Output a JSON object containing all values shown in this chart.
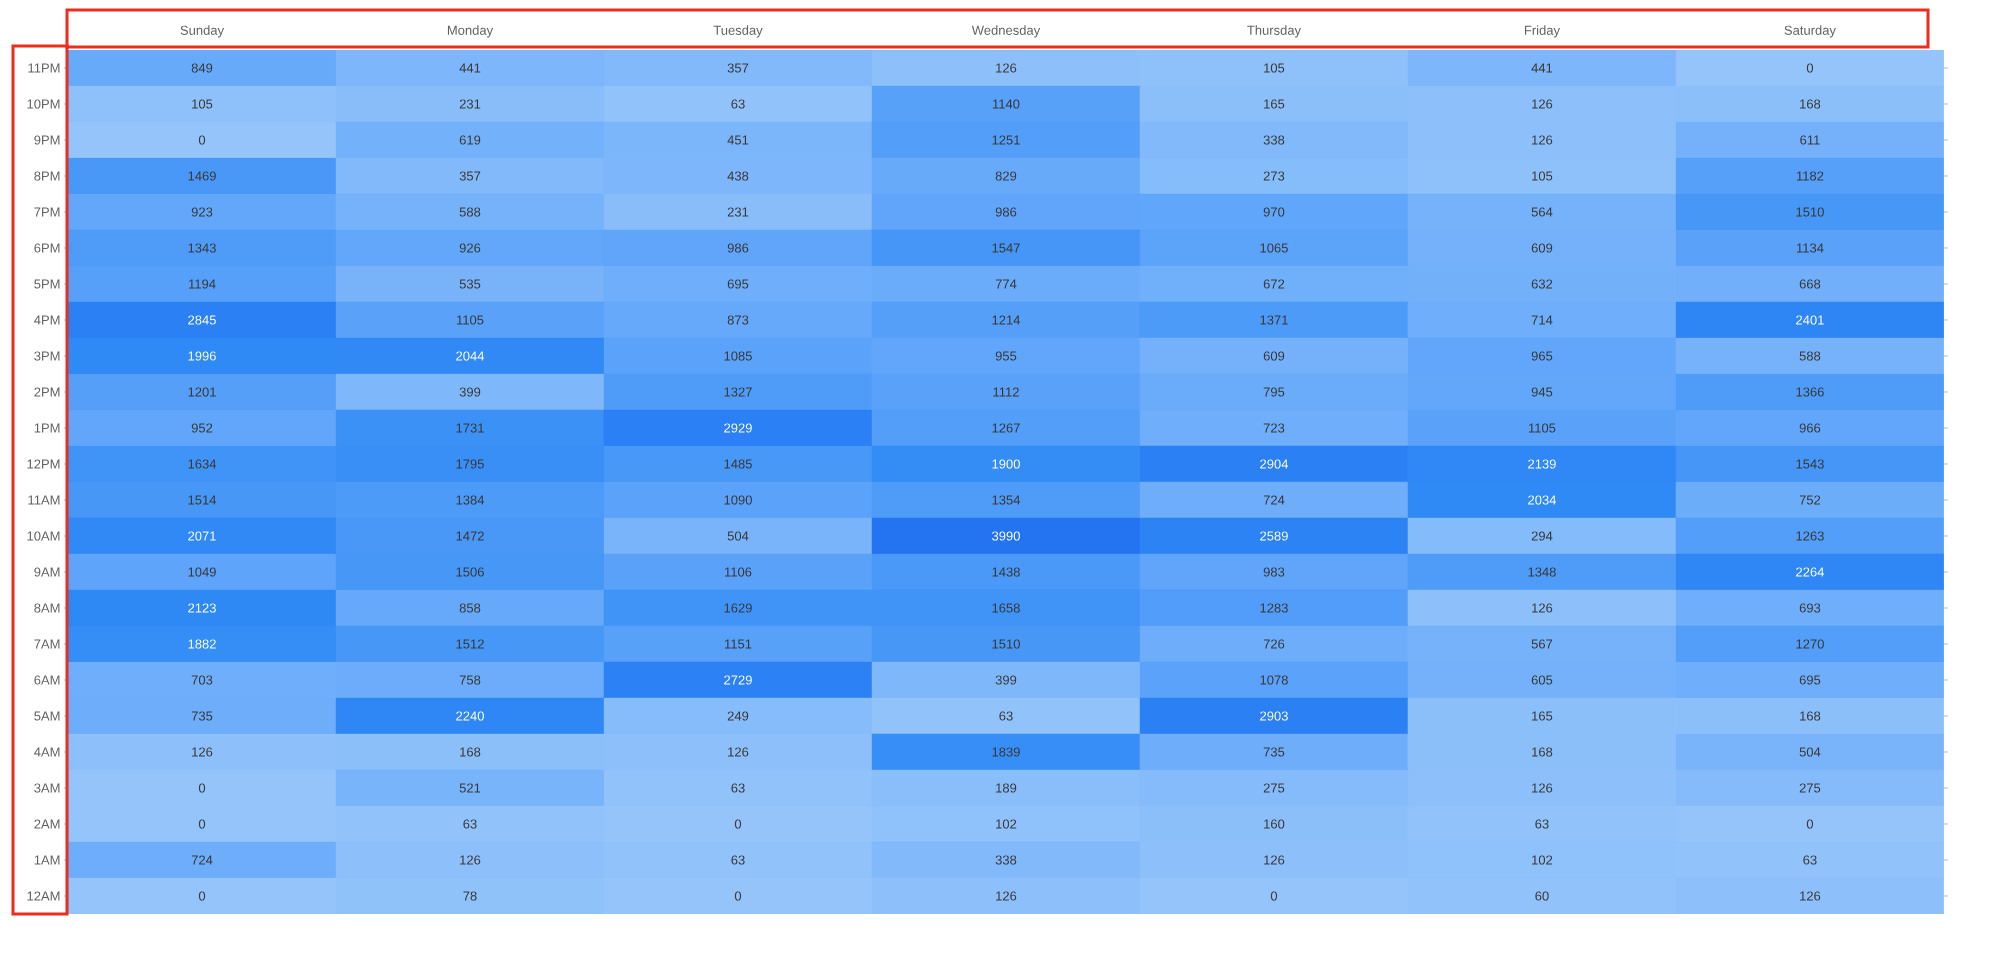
{
  "chart_data": {
    "type": "heatmap",
    "categories": [
      "Sunday",
      "Monday",
      "Tuesday",
      "Wednesday",
      "Thursday",
      "Friday",
      "Saturday"
    ],
    "y_categories": [
      "11PM",
      "10PM",
      "9PM",
      "8PM",
      "7PM",
      "6PM",
      "5PM",
      "4PM",
      "3PM",
      "2PM",
      "1PM",
      "12PM",
      "11AM",
      "10AM",
      "9AM",
      "8AM",
      "7AM",
      "6AM",
      "5AM",
      "4AM",
      "3AM",
      "2AM",
      "1AM",
      "12AM"
    ],
    "cells": [
      [
        849,
        441,
        357,
        126,
        105,
        441,
        0
      ],
      [
        105,
        231,
        63,
        1140,
        165,
        126,
        168
      ],
      [
        0,
        619,
        451,
        1251,
        338,
        126,
        611
      ],
      [
        1469,
        357,
        438,
        829,
        273,
        105,
        1182
      ],
      [
        923,
        588,
        231,
        986,
        970,
        564,
        1510
      ],
      [
        1343,
        926,
        986,
        1547,
        1065,
        609,
        1134
      ],
      [
        1194,
        535,
        695,
        774,
        672,
        632,
        668
      ],
      [
        2845,
        1105,
        873,
        1214,
        1371,
        714,
        2401
      ],
      [
        1996,
        2044,
        1085,
        955,
        609,
        965,
        588
      ],
      [
        1201,
        399,
        1327,
        1112,
        795,
        945,
        1366
      ],
      [
        952,
        1731,
        2929,
        1267,
        723,
        1105,
        966
      ],
      [
        1634,
        1795,
        1485,
        1900,
        2904,
        2139,
        1543
      ],
      [
        1514,
        1384,
        1090,
        1354,
        724,
        2034,
        752
      ],
      [
        2071,
        1472,
        504,
        3990,
        2589,
        294,
        1263
      ],
      [
        1049,
        1506,
        1106,
        1438,
        983,
        1348,
        2264
      ],
      [
        2123,
        858,
        1629,
        1658,
        1283,
        126,
        693
      ],
      [
        1882,
        1512,
        1151,
        1510,
        726,
        567,
        1270
      ],
      [
        703,
        758,
        2729,
        399,
        1078,
        605,
        695
      ],
      [
        735,
        2240,
        249,
        63,
        2903,
        165,
        168
      ],
      [
        126,
        168,
        126,
        1839,
        735,
        168,
        504
      ],
      [
        0,
        521,
        63,
        189,
        275,
        126,
        275
      ],
      [
        0,
        63,
        0,
        102,
        160,
        63,
        0
      ],
      [
        724,
        126,
        63,
        338,
        126,
        102,
        63
      ],
      [
        0,
        78,
        0,
        126,
        0,
        60,
        126
      ]
    ],
    "data_labels": true
  }
}
